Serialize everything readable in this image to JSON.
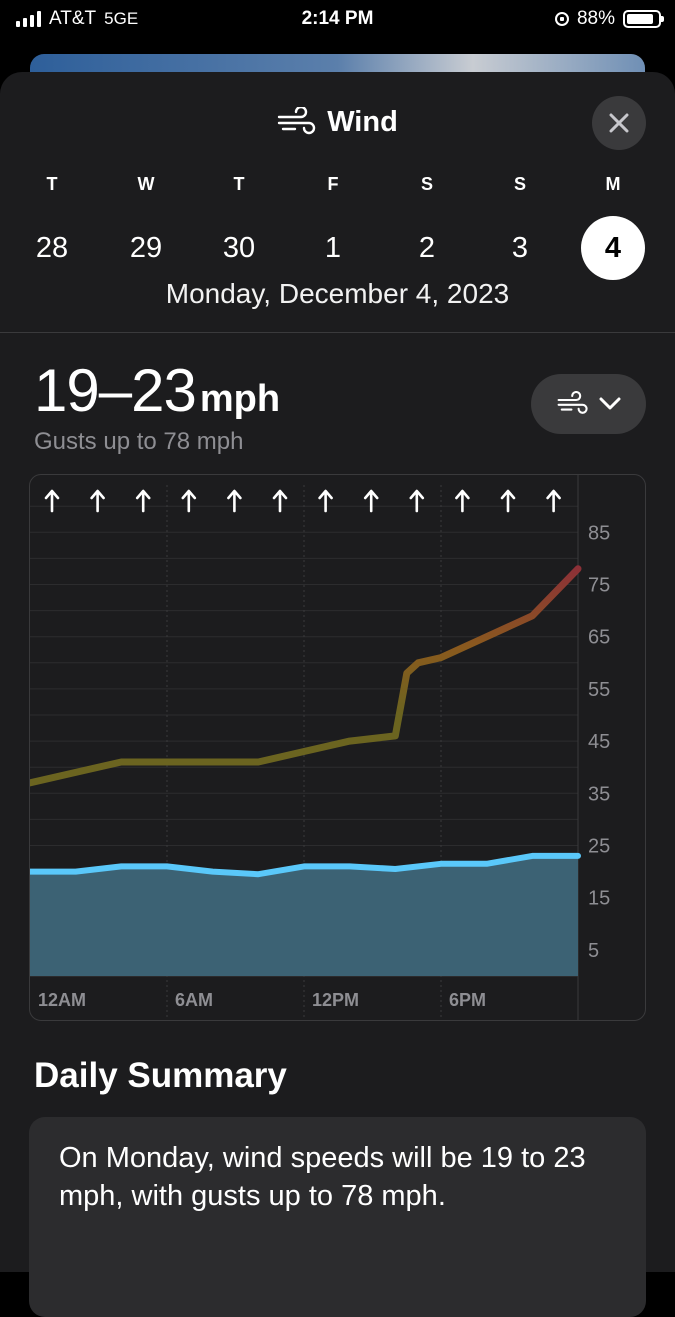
{
  "status_bar": {
    "carrier": "AT&T",
    "network": "5GE",
    "time": "2:14 PM",
    "battery": "88%",
    "battery_level": 0.88
  },
  "header": {
    "icon": "wind-icon",
    "title": "Wind",
    "close_icon": "close-icon"
  },
  "week": [
    {
      "dow": "T",
      "num": "28"
    },
    {
      "dow": "W",
      "num": "29"
    },
    {
      "dow": "T",
      "num": "30"
    },
    {
      "dow": "F",
      "num": "1"
    },
    {
      "dow": "S",
      "num": "2"
    },
    {
      "dow": "S",
      "num": "3"
    },
    {
      "dow": "M",
      "num": "4",
      "selected": true
    }
  ],
  "full_date": "Monday, December 4, 2023",
  "current": {
    "range": "19–23",
    "unit": "mph",
    "gusts": "Gusts up to 78 mph"
  },
  "view_toggle": {
    "icon": "wind-icon",
    "chevron": "chevron-down-icon"
  },
  "chart_data": {
    "type": "line",
    "title": "",
    "xlabel": "",
    "ylabel": "",
    "x_ticks": [
      "12AM",
      "6AM",
      "12PM",
      "6PM"
    ],
    "y_ticks": [
      85,
      75,
      65,
      55,
      45,
      35,
      25,
      15,
      5
    ],
    "ylim": [
      0,
      90
    ],
    "xlim": [
      0,
      24
    ],
    "grid": true,
    "direction_arrows": 12,
    "direction_icon": "arrow-up-icon",
    "series": [
      {
        "name": "",
        "style": "gust-line",
        "x": [
          0,
          2,
          4,
          6,
          8,
          10,
          12,
          14,
          16,
          16.5,
          17,
          18,
          20,
          22,
          24
        ],
        "y": [
          37,
          39,
          41,
          41,
          41,
          41,
          43,
          45,
          46,
          58,
          60,
          61,
          65,
          69,
          78
        ]
      },
      {
        "name": "",
        "style": "wind-area",
        "x": [
          0,
          2,
          4,
          6,
          8,
          10,
          12,
          14,
          16,
          18,
          20,
          22,
          24
        ],
        "y": [
          20,
          20,
          21,
          21,
          20,
          19.5,
          21,
          21,
          20.5,
          21.5,
          21.5,
          23,
          23
        ]
      }
    ],
    "colors": {
      "wind_line": "#5ac8fa",
      "wind_fill": "#3c6274",
      "gust_low": "#6b6420",
      "gust_mid": "#8a5a1e",
      "gust_high": "#8c2b3a"
    }
  },
  "summary": {
    "title": "Daily Summary",
    "text": "On Monday, wind speeds will be 19 to 23 mph, with gusts up to 78 mph."
  }
}
